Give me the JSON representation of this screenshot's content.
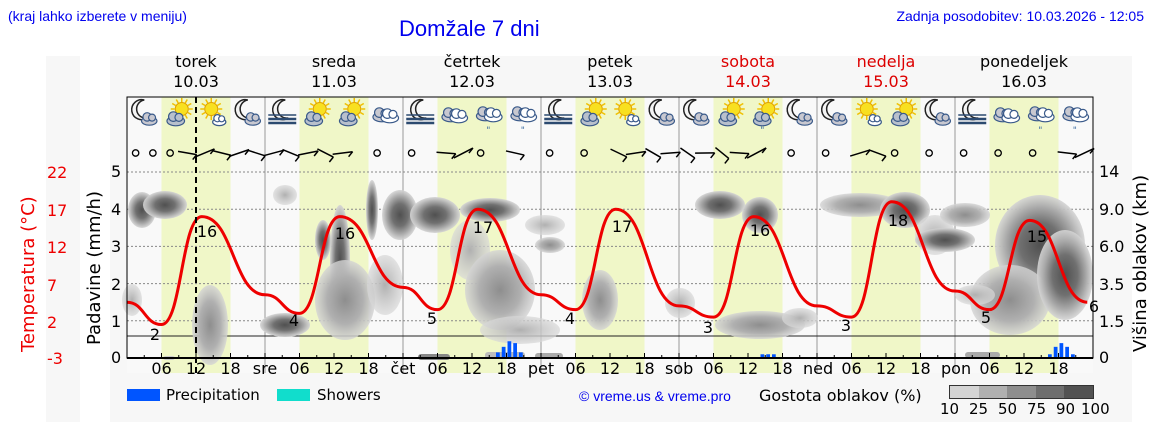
{
  "header": {
    "hint": "(kraj lahko izberete v meniju)",
    "title": "Domžale 7 dni",
    "updated": "Zadnja posodobitev: 10.03.2026 - 12:05"
  },
  "days": [
    {
      "name": "torek",
      "date": "10.03",
      "weekend": false
    },
    {
      "name": "sreda",
      "date": "11.03",
      "weekend": false
    },
    {
      "name": "četrtek",
      "date": "12.03",
      "weekend": false
    },
    {
      "name": "petek",
      "date": "13.03",
      "weekend": false
    },
    {
      "name": "sobota",
      "date": "14.03",
      "weekend": true
    },
    {
      "name": "nedelja",
      "date": "15.03",
      "weekend": true
    },
    {
      "name": "ponedeljek",
      "date": "16.03",
      "weekend": false
    }
  ],
  "axes": {
    "temp_label": "Temperatura (°C)",
    "temp_ticks": [
      "22",
      "17",
      "12",
      "7",
      "2",
      "-3"
    ],
    "precip_label": "Padavine (mm/h)",
    "precip_ticks": [
      "5",
      "4",
      "3",
      "2",
      "1",
      "0"
    ],
    "cloud_label": "Višina oblakov (km)",
    "cloud_ticks": [
      "14",
      "9.0",
      "6.0",
      "3.5",
      "1.5",
      "0"
    ],
    "x_ticks": [
      "06",
      "12",
      "18",
      "sre",
      "06",
      "12",
      "18",
      "čet",
      "06",
      "12",
      "18",
      "pet",
      "06",
      "12",
      "18",
      "sob",
      "06",
      "12",
      "18",
      "ned",
      "06",
      "12",
      "18",
      "pon",
      "06",
      "12",
      "18"
    ]
  },
  "legend": {
    "precipitation": "Precipitation",
    "showers": "Showers",
    "precip_color": "#0055ff",
    "showers_color": "#11ddcc",
    "copyright": "© vreme.us & vreme.pro",
    "cloud_density_label": "Gostota oblakov (%)",
    "cloud_density_ticks": [
      "10",
      "25",
      "50",
      "75",
      "90",
      "100"
    ],
    "cloud_density_colors": [
      "#d4d4d4",
      "#b0b0b0",
      "#8e8e8e",
      "#6e6e6e",
      "#525252"
    ]
  },
  "icons": [
    "moon-cloud",
    "sun-cloud",
    "sun-cloud-small",
    "moon-cloud",
    "moon-fog",
    "sun-cloud",
    "sun-cloud",
    "cloud",
    "moon-fog",
    "cloud",
    "cloud-drizzle",
    "cloud-drizzle",
    "moon-fog",
    "sun-cloud",
    "sun-cloud-small",
    "moon-cloud",
    "moon-cloud",
    "sun-cloud",
    "sun-cloud-drizzle",
    "moon-cloud",
    "moon-cloud",
    "sun-cloud-small",
    "sun-cloud",
    "moon-cloud",
    "moon-fog",
    "cloud",
    "cloud-drizzle",
    "cloud-drizzle"
  ],
  "chart_data": {
    "type": "line",
    "title": "Domžale 7 dni",
    "xlabel": "",
    "ylabel": "Temperatura (°C)",
    "ylim": [
      -3,
      22
    ],
    "grid": true,
    "x_hours_from_start": [
      0,
      6,
      13,
      24,
      30,
      37,
      48,
      54,
      61,
      72,
      78,
      85,
      96,
      102,
      109,
      120,
      126,
      133,
      144,
      150,
      157,
      167
    ],
    "series": [
      {
        "name": "Temperatura",
        "color": "#ee0000",
        "values": [
          4.5,
          1.5,
          16,
          5.5,
          3,
          16,
          6.5,
          3.5,
          17,
          5.5,
          3.5,
          17,
          4,
          2.5,
          16,
          4,
          2.5,
          18,
          6,
          3.5,
          15.5,
          4.5
        ]
      }
    ],
    "annotations": {
      "min_labels": [
        2,
        4,
        5,
        4,
        3,
        3,
        5,
        6
      ],
      "max_labels": [
        16,
        16,
        17,
        17,
        16,
        18,
        15
      ]
    },
    "precipitation_mm_h": [
      {
        "day": "12.03",
        "hour": 18,
        "values": [
          0.15,
          0.3,
          0.45,
          0.4,
          0.15
        ]
      },
      {
        "day": "14.03",
        "hour": 16,
        "values": [
          0.1,
          0.1,
          0.1
        ]
      },
      {
        "day": "16.03",
        "hour": 18,
        "values": [
          0.1,
          0.3,
          0.4,
          0.3,
          0.1
        ]
      }
    ],
    "current_time_marker_hour": 12
  }
}
